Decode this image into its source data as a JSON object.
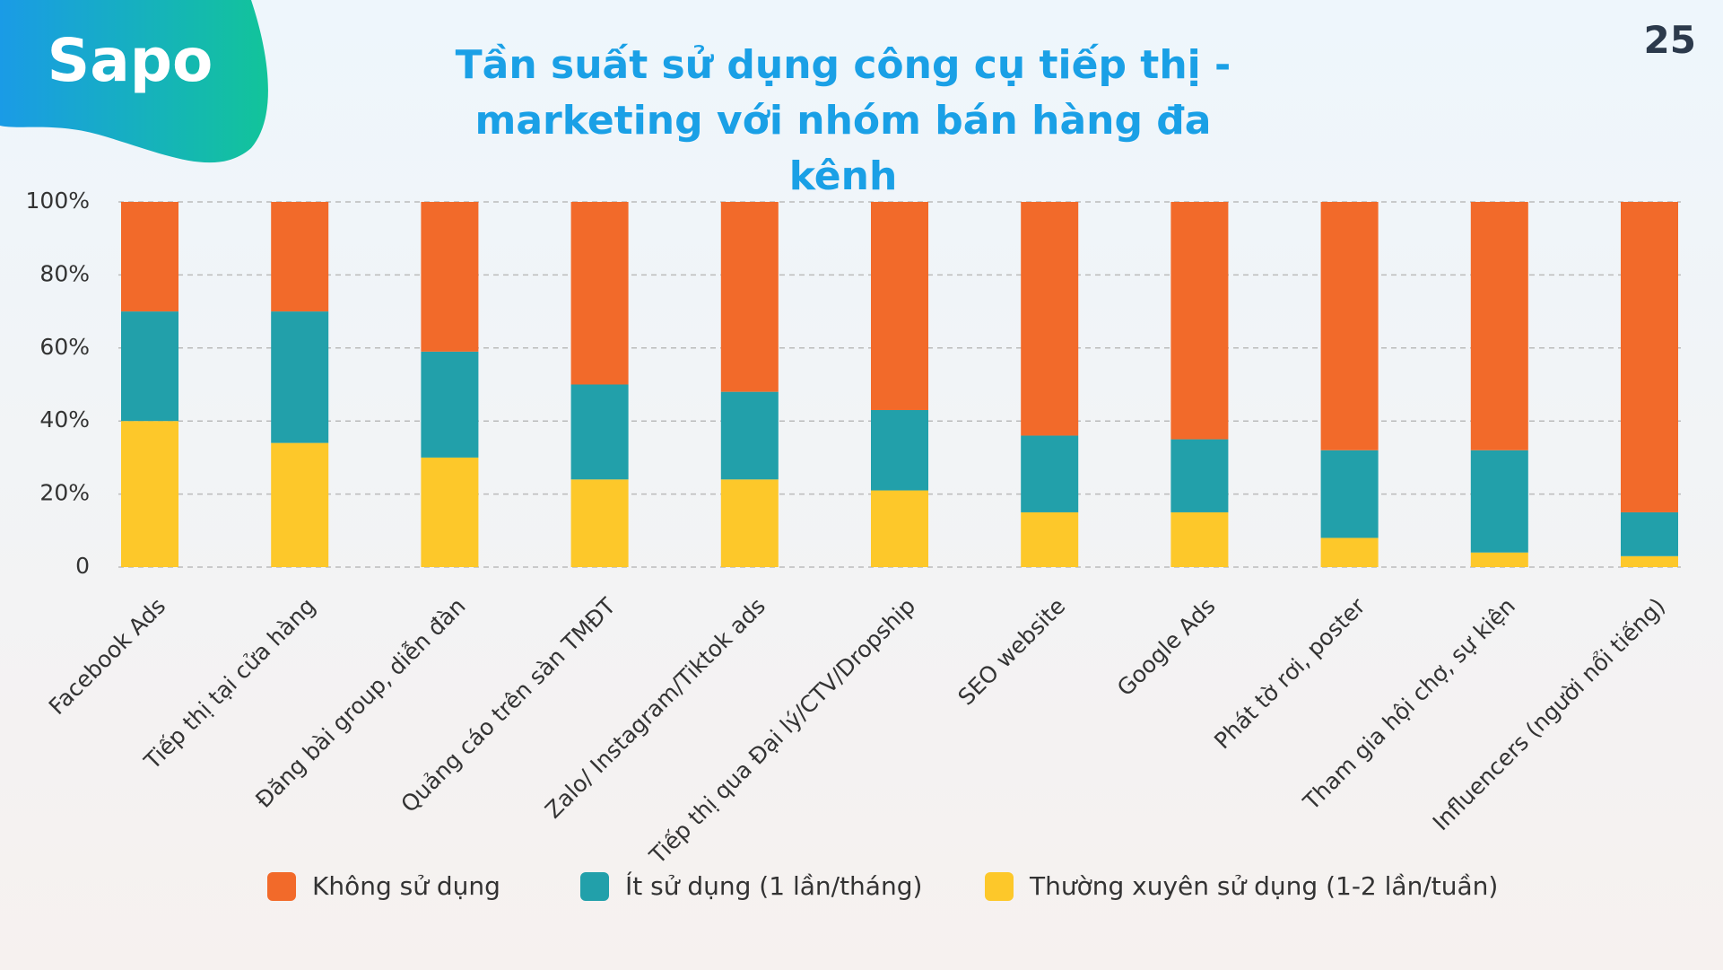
{
  "logo": "Sapo",
  "page_number": "25",
  "chart_data": {
    "type": "stacked_bar",
    "title": "Tần suất sử dụng công cụ tiếp thị - marketing với nhóm bán hàng đa kênh",
    "categories": [
      "Facebook Ads",
      "Tiếp thị tại cửa hàng",
      "Đăng bài group, diễn đàn",
      "Quảng cáo trên sàn TMĐT",
      "Zalo/ Instagram/Tiktok ads",
      "Tiếp thị qua Đại lý/CTV/Dropship",
      "SEO website",
      "Google Ads",
      "Phát tờ rơi, poster",
      "Tham gia hội chợ, sự kiện",
      "Influencers (người nổi tiếng)"
    ],
    "series": [
      {
        "name": "Không sử dụng",
        "color": "#f26a2a",
        "values": [
          30,
          30,
          41,
          50,
          52,
          57,
          64,
          65,
          68,
          68,
          85
        ]
      },
      {
        "name": "Ít sử dụng (1 lần/tháng)",
        "color": "#22a0aa",
        "values": [
          30,
          36,
          29,
          26,
          24,
          22,
          21,
          20,
          24,
          28,
          12
        ]
      },
      {
        "name": "Thường xuyên sử dụng (1-2 lần/tuần)",
        "color": "#fdc82a",
        "values": [
          40,
          34,
          30,
          24,
          24,
          21,
          15,
          15,
          8,
          4,
          3
        ]
      }
    ],
    "ylim": [
      0,
      100
    ],
    "yticks": [
      0,
      {
        "value": 20,
        "label": "20%"
      },
      {
        "value": 40,
        "label": "40%"
      },
      {
        "value": 60,
        "label": "60%"
      },
      {
        "value": 80,
        "label": "80%"
      },
      {
        "value": 100,
        "label": "100%"
      }
    ],
    "grid": true,
    "legend": "bottom"
  }
}
